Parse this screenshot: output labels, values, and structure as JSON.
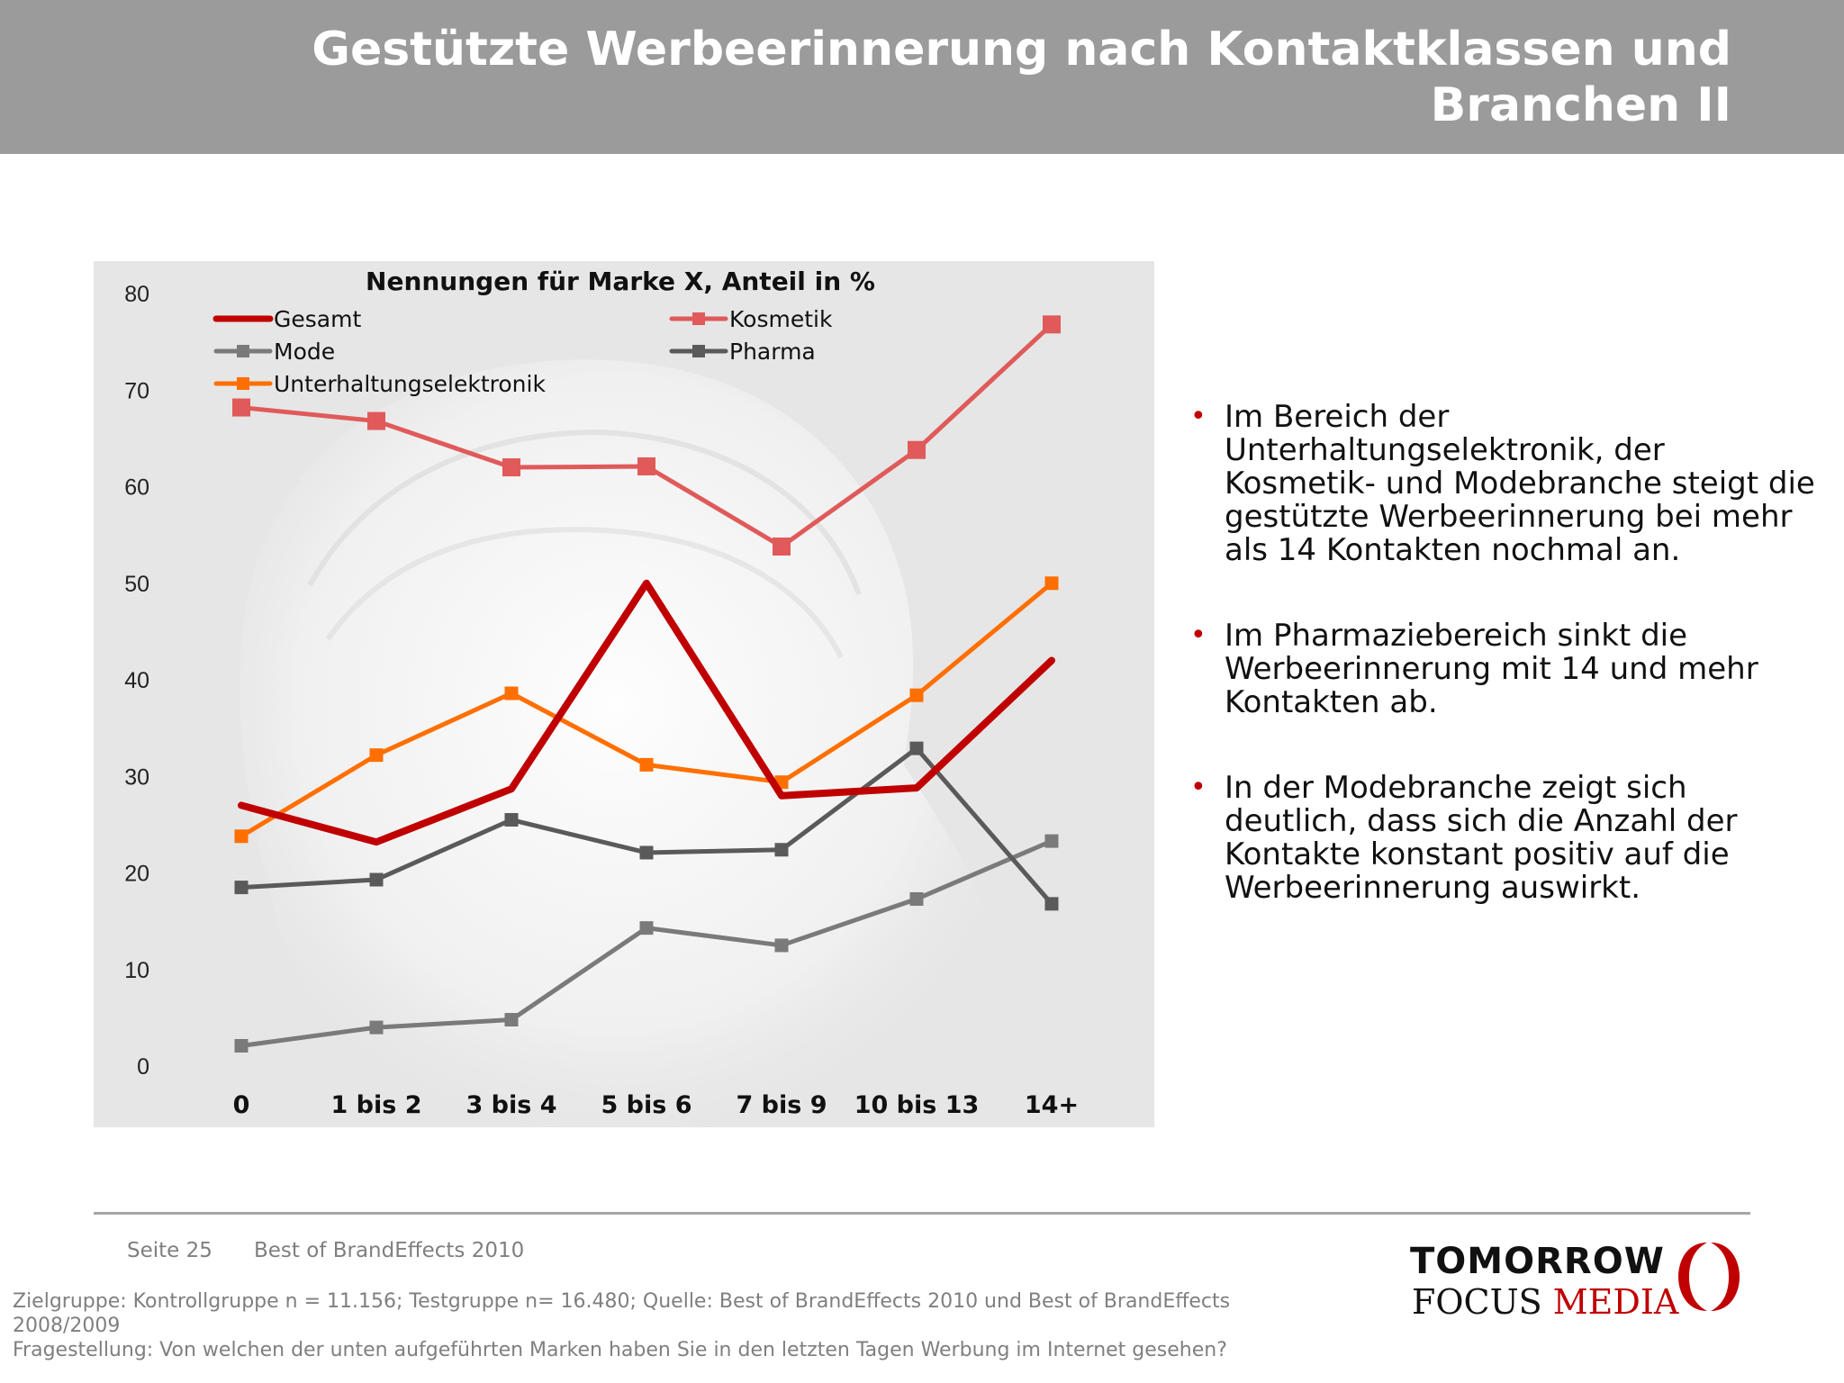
{
  "header": {
    "title": "Gestützte Werbeerinnerung nach Kontaktklassen und Branchen II"
  },
  "chart_data": {
    "type": "line",
    "title": "Nennungen für Marke X, Anteil in %",
    "categories": [
      "0",
      "1 bis 2",
      "3 bis 4",
      "5 bis 6",
      "7 bis 9",
      "10 bis 13",
      "14+"
    ],
    "ylim": [
      0,
      80
    ],
    "yticks": [
      0,
      10,
      20,
      30,
      40,
      50,
      60,
      70,
      80
    ],
    "grid": false,
    "series": [
      {
        "name": "Gesamt",
        "color": "#c00000",
        "marker": "none",
        "values": [
          27,
          23.2,
          28.7,
          50,
          28,
          28.8,
          42
        ]
      },
      {
        "name": "Kosmetik",
        "color": "#e05a5a",
        "marker": "square",
        "values": [
          68.2,
          66.8,
          62,
          62.1,
          53.8,
          63.8,
          76.8
        ]
      },
      {
        "name": "Mode",
        "color": "#7a7a7a",
        "marker": "square",
        "values": [
          2.1,
          4,
          4.8,
          14.3,
          12.5,
          17.3,
          23.3
        ]
      },
      {
        "name": "Pharma",
        "color": "#5a5a5a",
        "marker": "square",
        "values": [
          18.5,
          19.3,
          25.5,
          22.1,
          22.4,
          32.9,
          16.8
        ]
      },
      {
        "name": "Unterhaltungselektronik",
        "color": "#ff6f00",
        "marker": "square",
        "values": [
          23.8,
          32.2,
          38.6,
          31.2,
          29.4,
          38.4,
          50
        ]
      }
    ]
  },
  "bullets": [
    "Im Bereich der Unterhaltungselektronik, der Kosmetik- und Modebranche steigt die gestützte Werbeerinnerung bei mehr als 14 Kontakten nochmal an.",
    "Im Pharmaziebereich sinkt die Werbeerinnerung mit 14 und mehr Kontakten ab.",
    "In der Modebranche zeigt sich deutlich, dass sich die Anzahl der Kontakte konstant positiv auf die Werbeerinnerung auswirkt."
  ],
  "footer": {
    "page": "Seite 25",
    "source": "Best of BrandEffects 2010",
    "note1": "Zielgruppe: Kontrollgruppe n = 11.156; Testgruppe n= 16.480; Quelle: Best of BrandEffects 2010 und Best of BrandEffects 2008/2009",
    "note2": "Fragestellung: Von welchen der unten aufgeführten Marken haben Sie in den letzten Tagen Werbung im Internet gesehen?"
  },
  "logo": {
    "line1": "TOMORROW",
    "line2a": "FOCUS",
    "line2b": "MEDIA",
    "accent": "#c00000"
  }
}
